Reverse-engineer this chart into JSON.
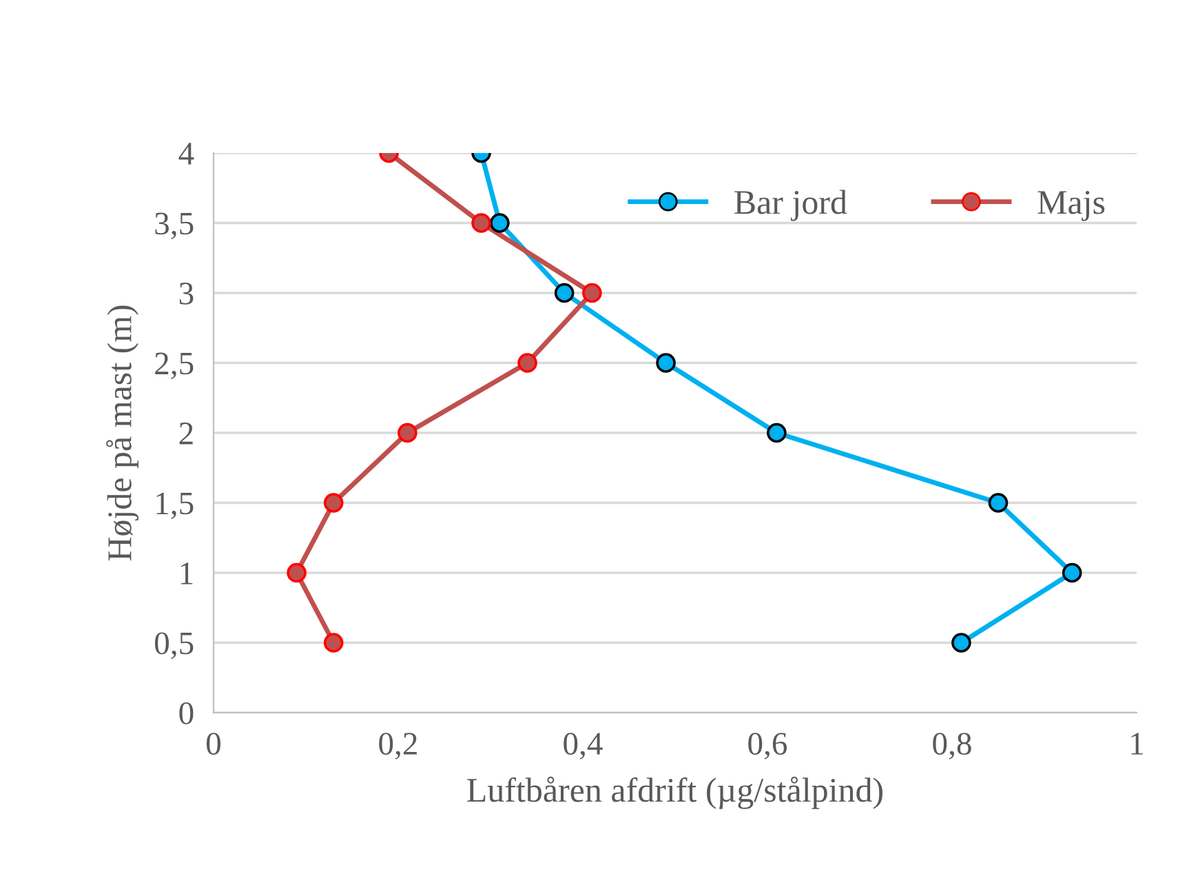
{
  "chart_data": {
    "type": "line",
    "xlabel": "Luftbåren afdrift (µg/stålpind)",
    "ylabel": "Højde på mast (m)",
    "series": [
      {
        "name": "Bar jord",
        "color": "#00b0f0",
        "x": [
          0.29,
          0.31,
          0.38,
          0.49,
          0.61,
          0.85,
          0.93,
          0.81
        ],
        "values": [
          4,
          3.5,
          3,
          2.5,
          2,
          1.5,
          1,
          0.5
        ]
      },
      {
        "name": "Majs",
        "color": "#c0504d",
        "x": [
          0.19,
          0.29,
          0.41,
          0.34,
          0.21,
          0.13,
          0.09,
          0.13
        ],
        "values": [
          4,
          3.5,
          3,
          2.5,
          2,
          1.5,
          1,
          0.5
        ]
      }
    ],
    "xlim": [
      0,
      1
    ],
    "ylim": [
      0,
      4
    ],
    "xticks": [
      0,
      {
        "value": 0.2,
        "label": "0,2"
      },
      {
        "value": 0.4,
        "label": "0,4"
      },
      {
        "value": 0.6,
        "label": "0,6"
      },
      {
        "value": 0.8,
        "label": "0,8"
      },
      1
    ],
    "yticks": [
      0,
      {
        "value": 0.5,
        "label": "0,5"
      },
      1,
      {
        "value": 1.5,
        "label": "1,5"
      },
      2,
      {
        "value": 2.5,
        "label": "2,5"
      },
      3,
      {
        "value": 3.5,
        "label": "3,5"
      },
      4
    ],
    "grid": "y",
    "legend": "top right",
    "marker": "circle",
    "line_style": "solid"
  }
}
